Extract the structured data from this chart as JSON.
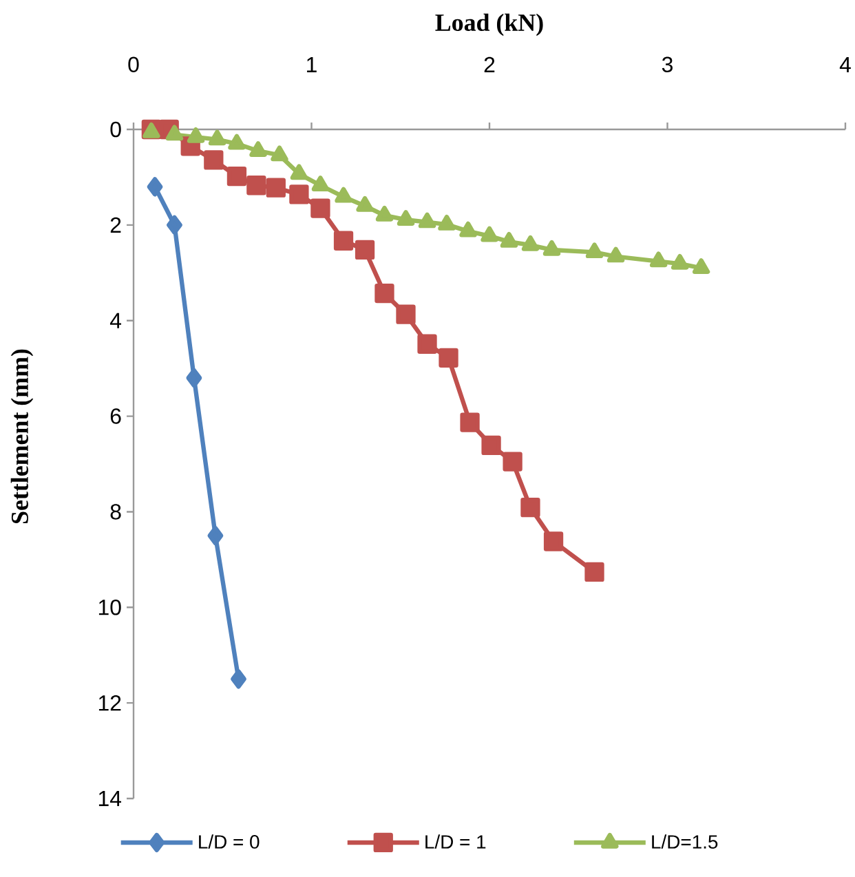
{
  "chart_data": {
    "type": "line",
    "xlabel": "Load (kN)",
    "ylabel": "Settlement (mm)",
    "xlim": [
      0,
      4
    ],
    "xticks": [
      0,
      1,
      2,
      3,
      4
    ],
    "ylim": [
      14,
      0
    ],
    "yticks": [
      0,
      2,
      4,
      6,
      8,
      10,
      12,
      14
    ],
    "grid": false,
    "legend": "bottom",
    "series": [
      {
        "name": "L/D = 0",
        "color": "#4f81bd",
        "marker": "diamond",
        "x": [
          0.12,
          0.23,
          0.34,
          0.46,
          0.59
        ],
        "values": [
          1.2,
          2.0,
          5.2,
          8.5,
          11.5
        ]
      },
      {
        "name": "L/D = 1",
        "color": "#c0504d",
        "marker": "square",
        "x": [
          0.1,
          0.2,
          0.32,
          0.45,
          0.58,
          0.69,
          0.8,
          0.93,
          1.05,
          1.18,
          1.3,
          1.41,
          1.53,
          1.65,
          1.77,
          1.89,
          2.01,
          2.13,
          2.23,
          2.36,
          2.59
        ],
        "values": [
          0.0,
          0.0,
          0.35,
          0.64,
          0.98,
          1.17,
          1.22,
          1.36,
          1.65,
          2.33,
          2.52,
          3.43,
          3.87,
          4.49,
          4.78,
          6.13,
          6.61,
          6.95,
          7.91,
          8.62,
          9.26
        ]
      },
      {
        "name": "L/D=1.5",
        "color": "#9bbb59",
        "marker": "triangle",
        "x": [
          0.1,
          0.23,
          0.35,
          0.47,
          0.58,
          0.7,
          0.82,
          0.93,
          1.05,
          1.18,
          1.3,
          1.41,
          1.53,
          1.65,
          1.76,
          1.88,
          2.0,
          2.11,
          2.23,
          2.35,
          2.59,
          2.71,
          2.95,
          3.07,
          3.19
        ],
        "values": [
          0.06,
          0.11,
          0.16,
          0.21,
          0.3,
          0.45,
          0.54,
          0.93,
          1.17,
          1.41,
          1.6,
          1.8,
          1.89,
          1.94,
          1.99,
          2.13,
          2.23,
          2.35,
          2.42,
          2.52,
          2.57,
          2.66,
          2.76,
          2.81,
          2.9
        ]
      }
    ]
  }
}
